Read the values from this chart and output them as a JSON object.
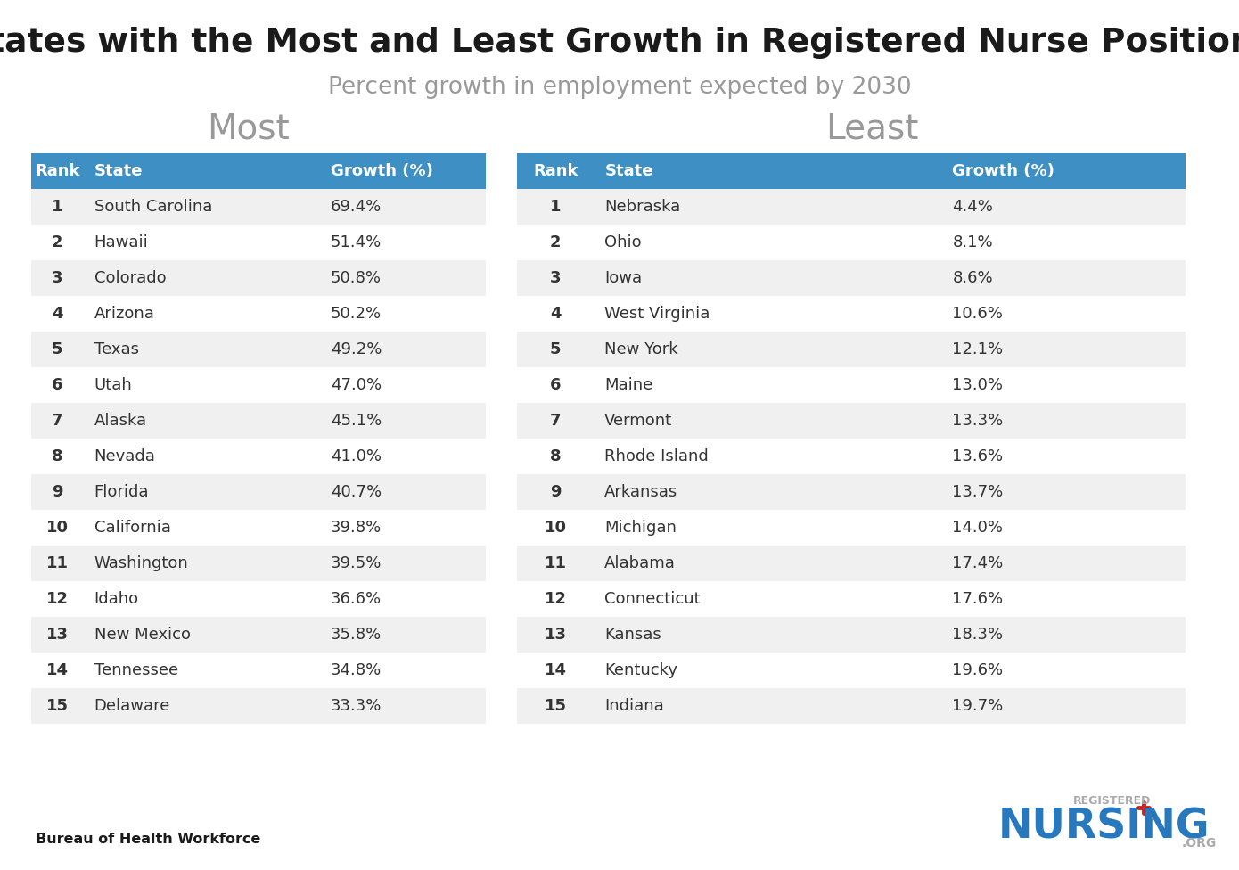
{
  "title": "States with the Most and Least Growth in Registered Nurse Positions",
  "subtitle": "Percent growth in employment expected by 2030",
  "most_header": "Most",
  "least_header": "Least",
  "col_headers": [
    "Rank",
    "State",
    "Growth (%)"
  ],
  "most_data": [
    [
      1,
      "South Carolina",
      "69.4%"
    ],
    [
      2,
      "Hawaii",
      "51.4%"
    ],
    [
      3,
      "Colorado",
      "50.8%"
    ],
    [
      4,
      "Arizona",
      "50.2%"
    ],
    [
      5,
      "Texas",
      "49.2%"
    ],
    [
      6,
      "Utah",
      "47.0%"
    ],
    [
      7,
      "Alaska",
      "45.1%"
    ],
    [
      8,
      "Nevada",
      "41.0%"
    ],
    [
      9,
      "Florida",
      "40.7%"
    ],
    [
      10,
      "California",
      "39.8%"
    ],
    [
      11,
      "Washington",
      "39.5%"
    ],
    [
      12,
      "Idaho",
      "36.6%"
    ],
    [
      13,
      "New Mexico",
      "35.8%"
    ],
    [
      14,
      "Tennessee",
      "34.8%"
    ],
    [
      15,
      "Delaware",
      "33.3%"
    ]
  ],
  "least_data": [
    [
      1,
      "Nebraska",
      "4.4%"
    ],
    [
      2,
      "Ohio",
      "8.1%"
    ],
    [
      3,
      "Iowa",
      "8.6%"
    ],
    [
      4,
      "West Virginia",
      "10.6%"
    ],
    [
      5,
      "New York",
      "12.1%"
    ],
    [
      6,
      "Maine",
      "13.0%"
    ],
    [
      7,
      "Vermont",
      "13.3%"
    ],
    [
      8,
      "Rhode Island",
      "13.6%"
    ],
    [
      9,
      "Arkansas",
      "13.7%"
    ],
    [
      10,
      "Michigan",
      "14.0%"
    ],
    [
      11,
      "Alabama",
      "17.4%"
    ],
    [
      12,
      "Connecticut",
      "17.6%"
    ],
    [
      13,
      "Kansas",
      "18.3%"
    ],
    [
      14,
      "Kentucky",
      "19.6%"
    ],
    [
      15,
      "Indiana",
      "19.7%"
    ]
  ],
  "header_bg": "#3d8fc4",
  "header_text": "#ffffff",
  "row_odd_bg": "#f0f0f0",
  "row_even_bg": "#ffffff",
  "row_text": "#333333",
  "source_text": "Bureau of Health Workforce",
  "background_color": "#ffffff",
  "title_color": "#1a1a1a",
  "subtitle_color": "#999999",
  "section_header_color": "#999999",
  "nursing_blue": "#2878be",
  "nursing_gray": "#aaaaaa",
  "cross_red": "#cc2222"
}
